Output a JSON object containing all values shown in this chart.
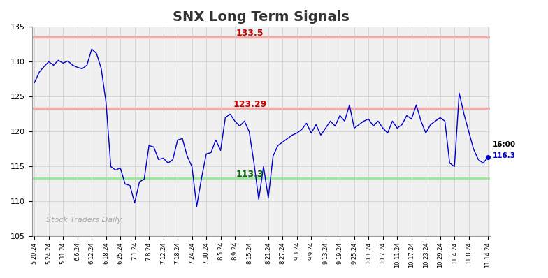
{
  "title": "SNX Long Term Signals",
  "title_color": "#333333",
  "title_fontsize": 14,
  "ylim": [
    105,
    135
  ],
  "yticks": [
    105,
    110,
    115,
    120,
    125,
    130,
    135
  ],
  "hline_upper": 133.5,
  "hline_middle": 123.29,
  "hline_lower": 113.3,
  "hline_upper_color": "#f4a9a8",
  "hline_middle_color": "#f4a9a8",
  "hline_lower_color": "#90ee90",
  "label_upper": "133.5",
  "label_upper_color": "#cc0000",
  "label_middle": "123.29",
  "label_middle_color": "#cc0000",
  "label_lower": "113.3",
  "label_lower_color": "#006400",
  "watermark": "Stock Traders Daily",
  "watermark_color": "#aaaaaa",
  "line_color": "#0000cc",
  "background_color": "#f0f0f0",
  "grid_color": "#cccccc",
  "last_time": "16:00",
  "last_price": "116.3",
  "x_labels": [
    "5.20.24",
    "5.24.24",
    "5.31.24",
    "6.6.24",
    "6.12.24",
    "6.18.24",
    "6.25.24",
    "7.1.24",
    "7.8.24",
    "7.12.24",
    "7.18.24",
    "7.24.24",
    "7.30.24",
    "8.5.24",
    "8.9.24",
    "8.15.24",
    "8.21.24",
    "8.27.24",
    "9.3.24",
    "9.9.24",
    "9.13.24",
    "9.19.24",
    "9.25.24",
    "10.1.24",
    "10.7.24",
    "10.11.24",
    "10.17.24",
    "10.23.24",
    "10.29.24",
    "11.4.24",
    "11.8.24",
    "11.14.24"
  ],
  "prices": [
    127.0,
    128.5,
    129.3,
    130.0,
    129.5,
    130.2,
    129.8,
    130.1,
    129.5,
    129.2,
    129.0,
    129.5,
    131.8,
    131.2,
    129.0,
    124.2,
    115.0,
    114.5,
    114.8,
    112.5,
    112.3,
    109.8,
    112.8,
    113.2,
    118.0,
    117.8,
    116.0,
    116.2,
    115.5,
    116.0,
    118.8,
    119.0,
    116.5,
    115.0,
    109.3,
    113.3,
    116.8,
    117.0,
    118.8,
    117.3,
    122.0,
    122.5,
    121.5,
    120.8,
    121.5,
    120.0,
    115.5,
    110.3,
    115.0,
    110.5,
    116.5,
    118.0,
    118.5,
    119.0,
    119.5,
    119.8,
    120.3,
    121.2,
    119.8,
    121.0,
    119.5,
    120.5,
    121.5,
    120.8,
    122.3,
    121.5,
    123.8,
    120.5,
    121.0,
    121.5,
    121.8,
    120.8,
    121.5,
    120.5,
    119.8,
    121.5,
    120.5,
    121.0,
    122.3,
    121.8,
    123.8,
    121.5,
    119.8,
    121.0,
    121.5,
    122.0,
    121.5,
    115.5,
    115.0,
    125.5,
    122.5,
    120.0,
    117.5,
    116.0,
    115.5,
    116.3
  ]
}
